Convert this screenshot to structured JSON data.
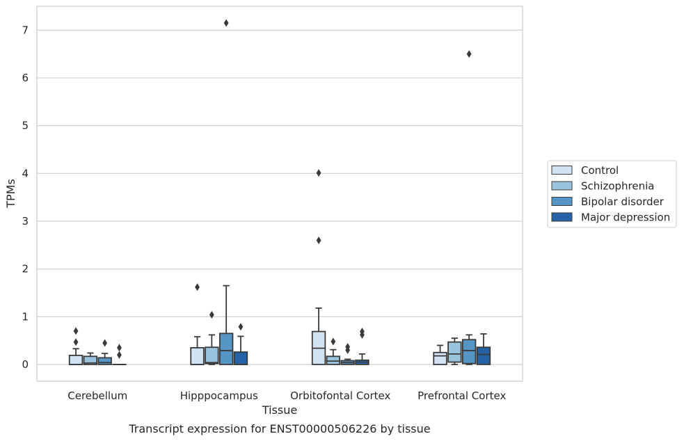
{
  "chart_data": {
    "type": "box",
    "title": "",
    "caption": "Transcript expression for ENST00000506226 by tissue",
    "xlabel": "Tissue",
    "ylabel": "TPMs",
    "ylim": [
      -0.35,
      7.5
    ],
    "yticks": [
      0,
      1,
      2,
      3,
      4,
      5,
      6,
      7
    ],
    "grid": "horizontal",
    "legend_position": "right",
    "categories": [
      "Cerebellum",
      "Hipppocampus",
      "Orbitofontal Cortex",
      "Prefrontal Cortex"
    ],
    "series": [
      {
        "name": "Control",
        "color": "#d1e2f2",
        "boxes": [
          {
            "min": 0,
            "q1": 0,
            "median": 0,
            "q3": 0.19,
            "max": 0.33,
            "outliers": [
              0.47,
              0.7
            ]
          },
          {
            "min": 0,
            "q1": 0,
            "median": 0,
            "q3": 0.35,
            "max": 0.58,
            "outliers": [
              1.62
            ]
          },
          {
            "min": 0,
            "q1": 0,
            "median": 0.34,
            "q3": 0.69,
            "max": 1.18,
            "outliers": [
              2.6,
              4.01
            ]
          },
          {
            "min": 0,
            "q1": 0,
            "median": 0.18,
            "q3": 0.25,
            "max": 0.4,
            "outliers": []
          }
        ]
      },
      {
        "name": "Schizophrenia",
        "color": "#9ac3de",
        "boxes": [
          {
            "min": 0,
            "q1": 0,
            "median": 0.03,
            "q3": 0.17,
            "max": 0.24,
            "outliers": []
          },
          {
            "min": 0,
            "q1": 0.02,
            "median": 0.04,
            "q3": 0.36,
            "max": 0.62,
            "outliers": [
              1.04
            ]
          },
          {
            "min": 0,
            "q1": 0,
            "median": 0.07,
            "q3": 0.17,
            "max": 0.31,
            "outliers": [
              0.48
            ]
          },
          {
            "min": 0,
            "q1": 0.05,
            "median": 0.22,
            "q3": 0.47,
            "max": 0.55,
            "outliers": []
          }
        ]
      },
      {
        "name": "Bipolar disorder",
        "color": "#5596c6",
        "boxes": [
          {
            "min": 0,
            "q1": 0,
            "median": 0.04,
            "q3": 0.14,
            "max": 0.23,
            "outliers": [
              0.45
            ]
          },
          {
            "min": 0,
            "q1": 0,
            "median": 0.29,
            "q3": 0.65,
            "max": 1.65,
            "outliers": [
              7.15
            ]
          },
          {
            "min": 0,
            "q1": 0,
            "median": 0.04,
            "q3": 0.08,
            "max": 0.11,
            "outliers": [
              0.3,
              0.37
            ]
          },
          {
            "min": 0,
            "q1": 0.02,
            "median": 0.29,
            "q3": 0.52,
            "max": 0.62,
            "outliers": [
              6.5
            ]
          }
        ]
      },
      {
        "name": "Major depression",
        "color": "#2563a6",
        "boxes": [
          {
            "min": 0,
            "q1": 0,
            "median": 0,
            "q3": 0,
            "max": 0,
            "outliers": [
              0.2,
              0.35
            ]
          },
          {
            "min": 0,
            "q1": 0,
            "median": 0,
            "q3": 0.26,
            "max": 0.59,
            "outliers": [
              0.79
            ]
          },
          {
            "min": 0,
            "q1": 0,
            "median": 0.05,
            "q3": 0.09,
            "max": 0.22,
            "outliers": [
              0.62,
              0.69
            ]
          },
          {
            "min": 0,
            "q1": 0,
            "median": 0.21,
            "q3": 0.36,
            "max": 0.64,
            "outliers": []
          }
        ]
      }
    ]
  }
}
